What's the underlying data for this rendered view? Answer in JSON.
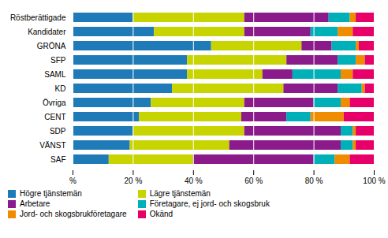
{
  "chart_data": {
    "type": "bar",
    "orientation": "horizontal",
    "stacked": true,
    "grid": true,
    "legend": "bottom",
    "categories": [
      "Röstberättigade",
      "Kandidater",
      "GRÖNA",
      "SFP",
      "SAML",
      "KD",
      "Övriga",
      "CENT",
      "SDP",
      "VÄNST",
      "SAF"
    ],
    "series": [
      {
        "name": "Högre tjänstemän",
        "color": "#1f7bb8",
        "values": [
          20,
          27,
          46,
          38,
          38,
          33,
          26,
          22,
          20,
          19,
          12
        ]
      },
      {
        "name": "Lägre tjänstemän",
        "color": "#c8d400",
        "values": [
          37,
          30,
          30,
          33,
          25,
          37,
          31,
          34,
          37,
          33,
          28
        ]
      },
      {
        "name": "Arbetare",
        "color": "#8b1a8b",
        "values": [
          28,
          22,
          10,
          17,
          10,
          18,
          23,
          15,
          32,
          37,
          40
        ]
      },
      {
        "name": "Företagare, ej jord- och skogsbruk",
        "color": "#00b0b9",
        "values": [
          7,
          9,
          8,
          6,
          16,
          8,
          9,
          8,
          4,
          4,
          7
        ]
      },
      {
        "name": "Jord- och skogsbrukföretagare",
        "color": "#f08c00",
        "values": [
          2,
          5,
          1,
          3,
          4,
          1,
          3,
          11,
          1,
          1,
          5
        ]
      },
      {
        "name": "Okänd",
        "color": "#e8006a",
        "values": [
          6,
          7,
          5,
          3,
          7,
          3,
          8,
          10,
          6,
          6,
          8
        ]
      }
    ],
    "xlim": [
      0,
      100
    ],
    "xticks": [
      {
        "value": 0,
        "label": "%"
      },
      {
        "value": 20,
        "label": "20 %"
      },
      {
        "value": 40,
        "label": "40 %"
      },
      {
        "value": 60,
        "label": "60 %"
      },
      {
        "value": 80,
        "label": "80 %"
      },
      {
        "value": 100,
        "label": "100 %"
      }
    ]
  }
}
